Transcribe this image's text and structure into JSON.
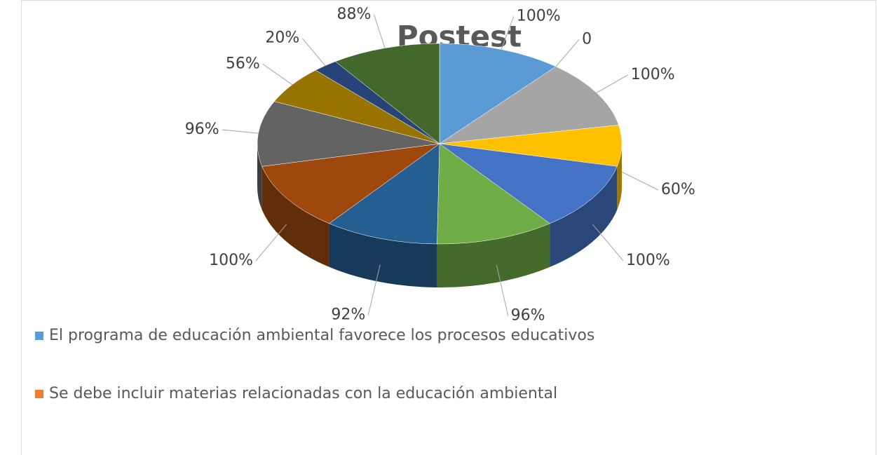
{
  "chart_data": {
    "type": "pie3d",
    "title": "Postest",
    "categories": [
      "El programa de educación ambiental favorece los procesos educativos",
      "Se debe incluir materias relacionadas con la educación ambiental",
      null,
      null,
      null,
      null,
      null,
      null,
      null,
      null,
      null,
      null
    ],
    "values": [
      100,
      0,
      100,
      60,
      100,
      96,
      92,
      100,
      96,
      56,
      20,
      88
    ],
    "value_labels": [
      "100%",
      "0",
      "100%",
      "60%",
      "100%",
      "96%",
      "92%",
      "100%",
      "96%",
      "56%",
      "20%",
      "88%"
    ],
    "colors": [
      "#5b9bd5",
      "#ed7d31",
      "#a5a5a5",
      "#ffc000",
      "#4472c4",
      "#70ad47",
      "#255e91",
      "#9e480e",
      "#636363",
      "#997300",
      "#264478",
      "#43682b"
    ],
    "legend": "bottom"
  }
}
